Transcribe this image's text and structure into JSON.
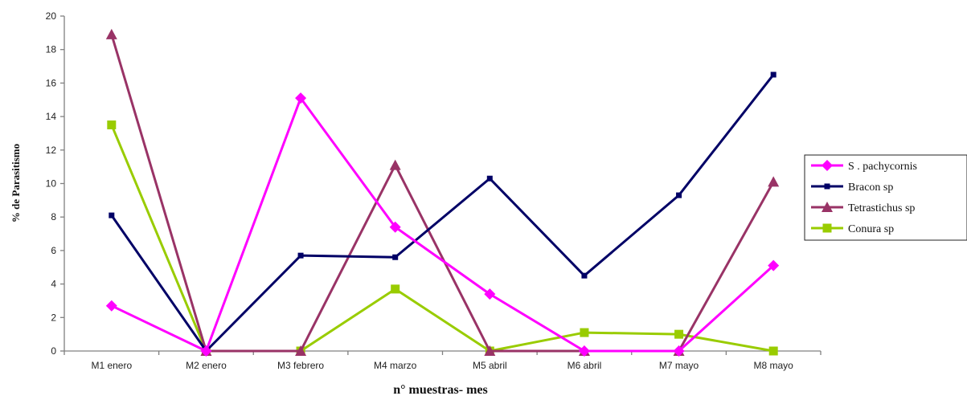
{
  "chart_data": {
    "type": "line",
    "title": "",
    "xlabel": "n° muestras- mes",
    "ylabel": "% de Parasitismo",
    "ylim": [
      0,
      20
    ],
    "yticks": [
      0,
      2,
      4,
      6,
      8,
      10,
      12,
      14,
      16,
      18,
      20
    ],
    "grid": false,
    "legend_position": "right",
    "categories": [
      "M1 enero",
      "M2 enero",
      "M3 febrero",
      "M4 marzo",
      "M5 abril",
      "M6 abril",
      "M7 mayo",
      "M8 mayo"
    ],
    "series": [
      {
        "name": "S . pachycornis",
        "color": "#ff00ff",
        "marker": "diamond",
        "values": [
          2.7,
          0,
          15.1,
          7.4,
          3.4,
          0,
          0,
          5.1
        ]
      },
      {
        "name": "Bracon sp",
        "color": "#000066",
        "marker": "square",
        "values": [
          8.1,
          0,
          5.7,
          5.6,
          10.3,
          4.5,
          9.3,
          16.5
        ]
      },
      {
        "name": "Tetrastichus sp",
        "color": "#993366",
        "marker": "triangle",
        "values": [
          18.9,
          0,
          0,
          11.1,
          0,
          0,
          0,
          10.1
        ]
      },
      {
        "name": "Conura sp",
        "color": "#99cc00",
        "marker": "square",
        "values": [
          13.5,
          0,
          0,
          3.7,
          0,
          1.1,
          1.0,
          0
        ]
      }
    ]
  }
}
